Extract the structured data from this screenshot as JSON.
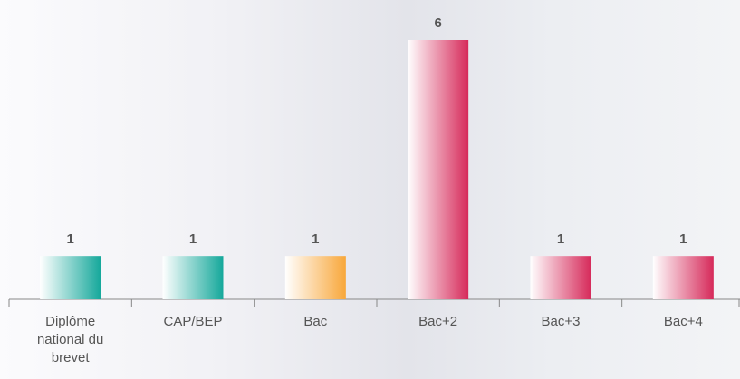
{
  "chart_data": {
    "type": "bar",
    "categories": [
      "Diplôme national du brevet",
      "CAP/BEP",
      "Bac",
      "Bac+2",
      "Bac+3",
      "Bac+4"
    ],
    "values": [
      1,
      1,
      1,
      6,
      1,
      1
    ],
    "colors": [
      "#15a89b",
      "#15a89b",
      "#f8a73a",
      "#d62a5a",
      "#d62a5a",
      "#d62a5a"
    ]
  }
}
